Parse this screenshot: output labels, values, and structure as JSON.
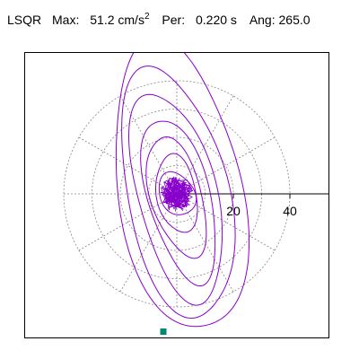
{
  "header": {
    "component": "LSQR",
    "max_label": "Max:",
    "max_value": "51.2",
    "max_unit": "cm/s",
    "max_unit_exp": "2",
    "period_label": "Per:",
    "period_value": "0.220 s",
    "angle_label": "Ang:",
    "angle_value": "265.0"
  },
  "colors": {
    "trace": "#8800cc",
    "grid": "#888888",
    "axis": "#000000",
    "marker": "#008877"
  },
  "chart_data": {
    "type": "polar-orbit",
    "max_amplitude": 51.2,
    "max_direction_deg": 265.0,
    "r_ticks": [
      {
        "value": 20,
        "label": "20"
      },
      {
        "value": 40,
        "label": "40"
      }
    ],
    "grid_circles": [
      10,
      20,
      30,
      40
    ],
    "grid_rays_deg": [
      0,
      30,
      60,
      90,
      120,
      150,
      180,
      210,
      240,
      270,
      300,
      330
    ],
    "orbits": [
      {
        "a": 52,
        "b": 22,
        "tilt_deg": 10,
        "cx": 1,
        "cy": -2
      },
      {
        "a": 45,
        "b": 18,
        "tilt_deg": 12,
        "cx": 0,
        "cy": 0
      },
      {
        "a": 38,
        "b": 14,
        "tilt_deg": 14,
        "cx": 0,
        "cy": 1
      },
      {
        "a": 30,
        "b": 11,
        "tilt_deg": 15,
        "cx": 1,
        "cy": 2
      },
      {
        "a": 22,
        "b": 9,
        "tilt_deg": 16,
        "cx": 0,
        "cy": 1
      },
      {
        "a": 14,
        "b": 7,
        "tilt_deg": 10,
        "cx": 0,
        "cy": 0
      },
      {
        "a": 8,
        "b": 6,
        "tilt_deg": 30,
        "cx": 0,
        "cy": 0
      }
    ],
    "noise_cluster_radius": 6,
    "grid": true
  }
}
